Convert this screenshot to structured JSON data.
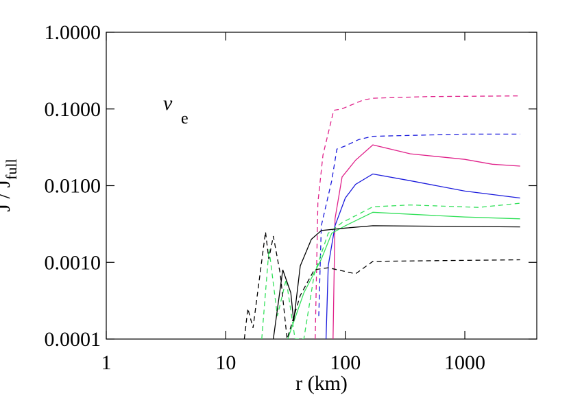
{
  "chart_data": {
    "type": "line",
    "xlabel": "r (km)",
    "ylabel": {
      "main": "J / J",
      "sub": "full"
    },
    "annotation": {
      "main": "ν",
      "sub": "e"
    },
    "xscale": "log",
    "yscale": "log",
    "xlim": [
      1,
      4000
    ],
    "ylim": [
      0.0001,
      1
    ],
    "xticks": [
      1,
      10,
      100,
      1000
    ],
    "yticks": [
      {
        "value": 0.0001,
        "label": "0.0001"
      },
      {
        "value": 0.001,
        "label": "0.0010"
      },
      {
        "value": 0.01,
        "label": "0.0100"
      },
      {
        "value": 0.1,
        "label": "0.1000"
      },
      {
        "value": 1,
        "label": "1.0000"
      }
    ],
    "series": [
      {
        "color": "#e0218a",
        "dash": true,
        "x": [
          56,
          59,
          65,
          80,
          93,
          140,
          170,
          500,
          2900
        ],
        "values": [
          0.0001,
          0.006,
          0.025,
          0.096,
          0.1,
          0.13,
          0.138,
          0.145,
          0.148
        ]
      },
      {
        "color": "#1a1adc",
        "dash": true,
        "x": [
          60,
          63,
          77,
          85,
          100,
          130,
          170,
          1000,
          2900
        ],
        "values": [
          0.0002,
          0.003,
          0.0116,
          0.03,
          0.033,
          0.04,
          0.044,
          0.047,
          0.047
        ]
      },
      {
        "color": "#e0218a",
        "dash": false,
        "x": [
          79,
          82,
          94,
          122,
          170,
          350,
          1000,
          1700,
          2900
        ],
        "values": [
          0.0001,
          0.0037,
          0.013,
          0.0215,
          0.034,
          0.026,
          0.022,
          0.019,
          0.018
        ]
      },
      {
        "color": "#1a1adc",
        "dash": false,
        "x": [
          69,
          72,
          82,
          100,
          122,
          170,
          350,
          1000,
          2900
        ],
        "values": [
          0.0001,
          0.0009,
          0.003,
          0.0069,
          0.0104,
          0.0142,
          0.0116,
          0.0085,
          0.0069
        ]
      },
      {
        "color": "#33e05a",
        "dash": true,
        "x": [
          20,
          23,
          27,
          32,
          38,
          45,
          55,
          72,
          94,
          170,
          350,
          1300,
          2900
        ],
        "values": [
          0.0001,
          0.0015,
          0.0002,
          0.0006,
          0.0001,
          0.0001,
          0.0007,
          0.0024,
          0.0033,
          0.0053,
          0.0056,
          0.0052,
          0.0059
        ]
      },
      {
        "color": "#33e05a",
        "dash": false,
        "x": [
          33,
          45,
          63,
          77,
          100,
          170,
          1000,
          2900
        ],
        "values": [
          0.0001,
          0.0004,
          0.0011,
          0.0024,
          0.003,
          0.0045,
          0.0039,
          0.0037
        ]
      },
      {
        "color": "#000000",
        "dash": false,
        "x": [
          25,
          30,
          35,
          37,
          42,
          52,
          63,
          100,
          170,
          2900
        ],
        "values": [
          0.0001,
          0.0008,
          0.0004,
          0.00017,
          0.0009,
          0.002,
          0.0026,
          0.0028,
          0.003,
          0.0029
        ]
      },
      {
        "color": "#000000",
        "dash": true,
        "x": [
          14.3,
          15.3,
          16.9,
          21.5,
          22.9,
          25,
          28.6,
          32.6,
          42,
          55,
          72,
          122,
          170,
          2900
        ],
        "values": [
          0.0001,
          0.00025,
          0.00014,
          0.0025,
          0.0011,
          0.0022,
          0.0007,
          0.0001,
          0.00037,
          0.0008,
          0.00085,
          0.00071,
          0.00103,
          0.00108
        ]
      }
    ]
  }
}
